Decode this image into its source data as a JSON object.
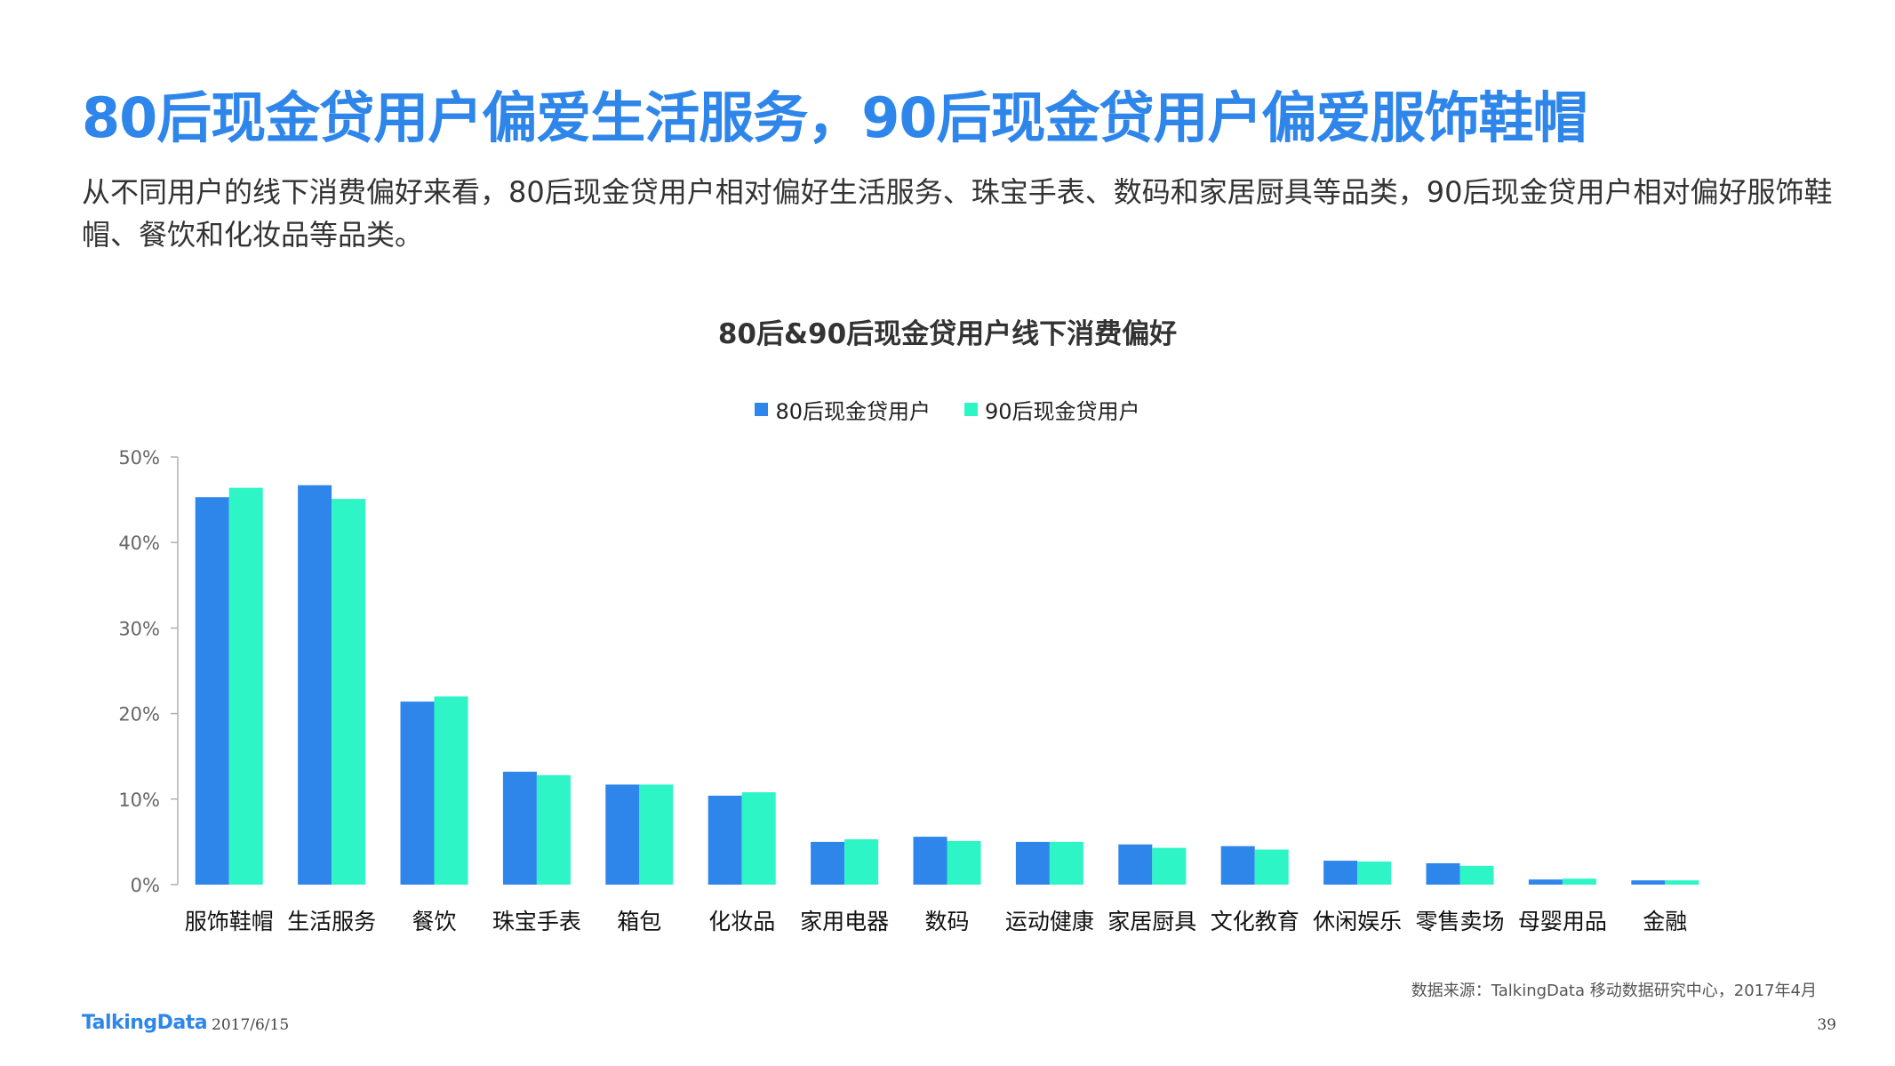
{
  "slide": {
    "title": "80后现金贷用户偏爱生活服务，90后现金贷用户偏爱服饰鞋帽",
    "description": "从不同用户的线下消费偏好来看，80后现金贷用户相对偏好生活服务、珠宝手表、数码和家居厨具等品类，90后现金贷用户相对偏好服饰鞋帽、餐饮和化妆品等品类。",
    "source": "数据来源：TalkingData 移动数据研究中心，2017年4月",
    "logo": "TalkingData",
    "date": "2017/6/15",
    "page_number": "39"
  },
  "colors": {
    "accent": "#2f86ea",
    "series_80": "#2f86ea",
    "series_90": "#2ef5c6",
    "axis": "#b0b0b0"
  },
  "chart_data": {
    "type": "bar",
    "title": "80后&90后现金贷用户线下消费偏好",
    "legend_position": "top",
    "grid": false,
    "ylim": [
      0,
      50
    ],
    "yticks": [
      "0%",
      "10%",
      "20%",
      "30%",
      "40%",
      "50%"
    ],
    "ytick_values": [
      0,
      10,
      20,
      30,
      40,
      50
    ],
    "categories": [
      "服饰鞋帽",
      "生活服务",
      "餐饮",
      "珠宝手表",
      "箱包",
      "化妆品",
      "家用电器",
      "数码",
      "运动健康",
      "家居厨具",
      "文化教育",
      "休闲娱乐",
      "零售卖场",
      "母婴用品",
      "金融"
    ],
    "series": [
      {
        "name": "80后现金贷用户",
        "values": [
          45.3,
          46.7,
          21.4,
          13.2,
          11.7,
          10.4,
          5.0,
          5.6,
          5.0,
          4.7,
          4.5,
          2.8,
          2.5,
          0.6,
          0.5
        ]
      },
      {
        "name": "90后现金贷用户",
        "values": [
          46.4,
          45.1,
          22.0,
          12.8,
          11.7,
          10.8,
          5.3,
          5.1,
          5.0,
          4.3,
          4.1,
          2.7,
          2.2,
          0.7,
          0.5
        ]
      }
    ]
  }
}
